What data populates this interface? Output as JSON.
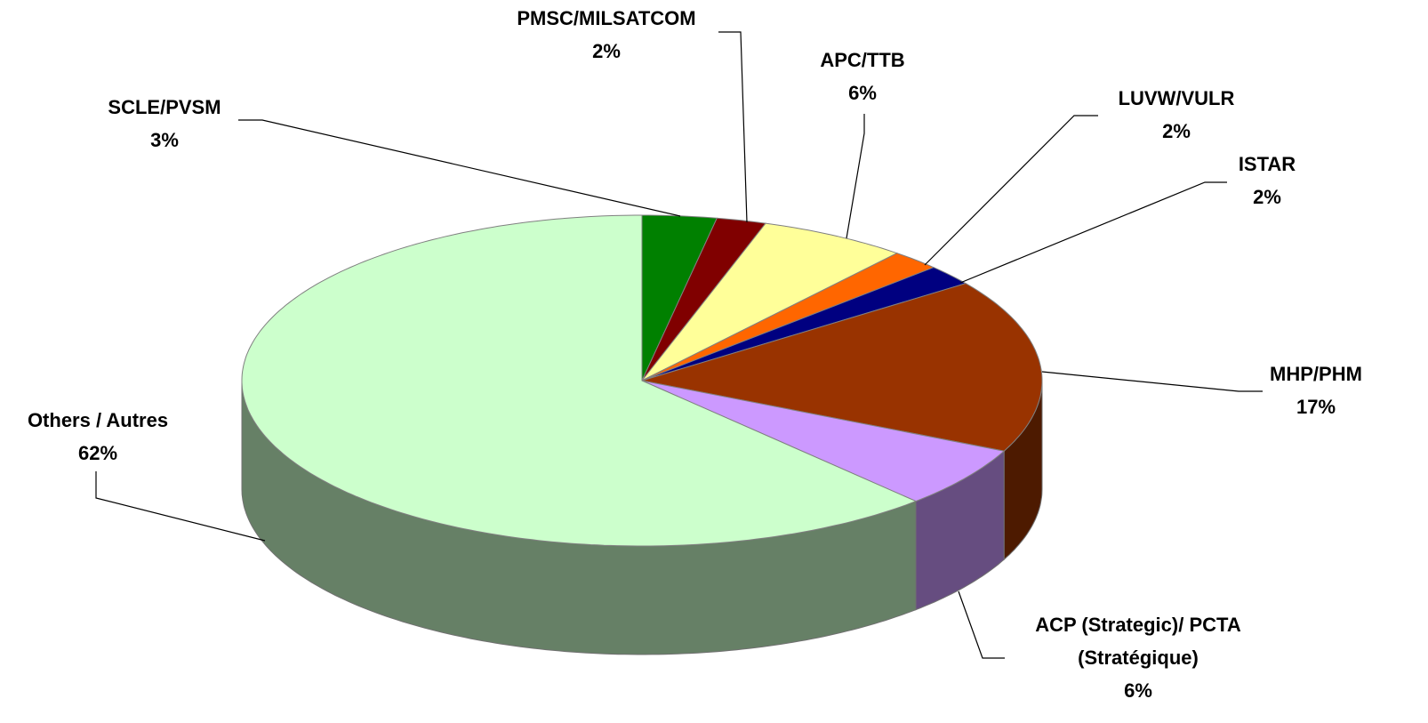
{
  "chart_data": {
    "type": "pie",
    "categories": [
      "SCLE/PVSM",
      "PMSC/MILSATCOM",
      "APC/TTB",
      "LUVW/VULR",
      "ISTAR",
      "MHP/PHM",
      "ACP (Strategic)/ PCTA (Stratégique)",
      "Others / Autres"
    ],
    "values": [
      3,
      2,
      6,
      2,
      2,
      17,
      6,
      62
    ],
    "value_labels": [
      "3%",
      "2%",
      "6%",
      "2%",
      "2%",
      "17%",
      "6%",
      "62%"
    ],
    "colors": [
      "#008000",
      "#800000",
      "#ffff99",
      "#ff6600",
      "#000080",
      "#993300",
      "#cc99ff",
      "#ccffcc"
    ],
    "three_d": true
  }
}
